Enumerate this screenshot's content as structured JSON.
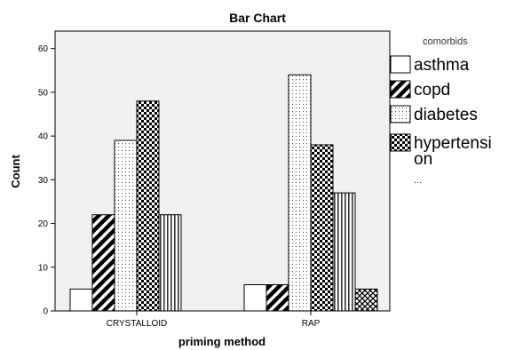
{
  "chart_data": {
    "type": "bar",
    "title": "Bar Chart",
    "xlabel": "priming method",
    "ylabel": "Count",
    "categories": [
      "CRYSTALLOID",
      "RAP"
    ],
    "series": [
      {
        "name": "asthma",
        "values": [
          5,
          6
        ],
        "pattern": "plain"
      },
      {
        "name": "copd",
        "values": [
          22,
          6
        ],
        "pattern": "diagonal"
      },
      {
        "name": "diabetes",
        "values": [
          39,
          54
        ],
        "pattern": "dotted"
      },
      {
        "name": "hypertension",
        "values": [
          48,
          38
        ],
        "pattern": "checker"
      },
      {
        "name": "",
        "values": [
          22,
          27
        ],
        "pattern": "vertical"
      },
      {
        "name": "",
        "values": [
          0,
          5
        ],
        "pattern": "crosshatch"
      }
    ],
    "ylim": [
      0,
      64
    ],
    "yticks": [
      0,
      10,
      20,
      30,
      40,
      50,
      60
    ],
    "legend": {
      "title": "comorbids",
      "position": "right",
      "entries": [
        {
          "label_lines": [
            "asthma"
          ],
          "pattern": "plain"
        },
        {
          "label_lines": [
            "copd"
          ],
          "pattern": "diagonal"
        },
        {
          "label_lines": [
            "diabetes"
          ],
          "pattern": "dotted"
        },
        {
          "label_lines": [
            "hypertensi",
            "on"
          ],
          "pattern": "checker"
        }
      ],
      "more": "..."
    },
    "grid": false,
    "plot_background": "#f0f0f0"
  }
}
